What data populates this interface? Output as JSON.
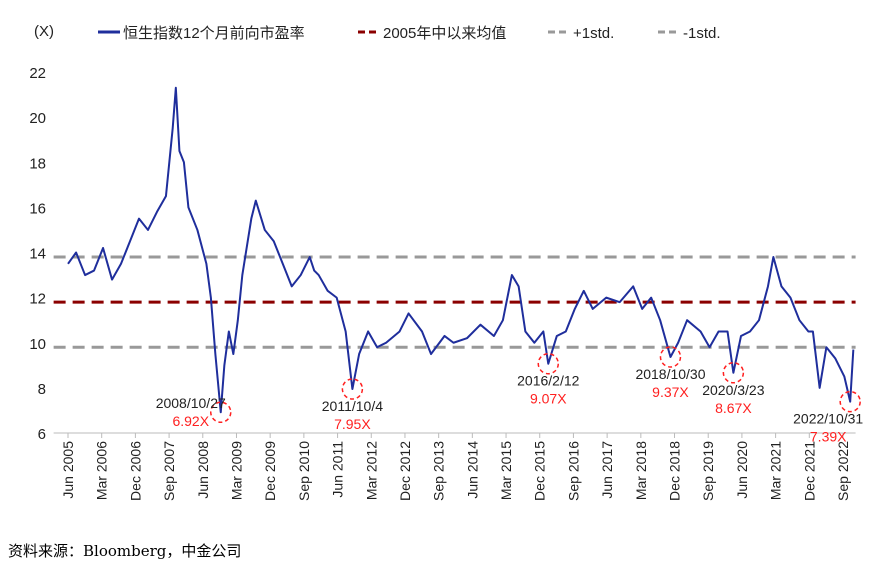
{
  "chart_data": {
    "type": "line",
    "unit_label": "(X)",
    "ylim": [
      6,
      22
    ],
    "yticks": [
      6,
      8,
      10,
      12,
      14,
      16,
      18,
      20,
      22
    ],
    "xlim": [
      2005.1,
      2022.95
    ],
    "xticks": [
      {
        "t": 2005.42,
        "label": "Jun 2005"
      },
      {
        "t": 2006.17,
        "label": "Mar 2006"
      },
      {
        "t": 2006.92,
        "label": "Dec 2006"
      },
      {
        "t": 2007.67,
        "label": "Sep 2007"
      },
      {
        "t": 2008.42,
        "label": "Jun 2008"
      },
      {
        "t": 2009.17,
        "label": "Mar 2009"
      },
      {
        "t": 2009.92,
        "label": "Dec 2009"
      },
      {
        "t": 2010.67,
        "label": "Sep 2010"
      },
      {
        "t": 2011.42,
        "label": "Jun 2011"
      },
      {
        "t": 2012.17,
        "label": "Mar 2012"
      },
      {
        "t": 2012.92,
        "label": "Dec 2012"
      },
      {
        "t": 2013.67,
        "label": "Sep 2013"
      },
      {
        "t": 2014.42,
        "label": "Jun 2014"
      },
      {
        "t": 2015.17,
        "label": "Mar 2015"
      },
      {
        "t": 2015.92,
        "label": "Dec 2015"
      },
      {
        "t": 2016.67,
        "label": "Sep 2016"
      },
      {
        "t": 2017.42,
        "label": "Jun 2017"
      },
      {
        "t": 2018.17,
        "label": "Mar 2018"
      },
      {
        "t": 2018.92,
        "label": "Dec 2018"
      },
      {
        "t": 2019.67,
        "label": "Sep 2019"
      },
      {
        "t": 2020.42,
        "label": "Jun 2020"
      },
      {
        "t": 2021.17,
        "label": "Mar 2021"
      },
      {
        "t": 2021.92,
        "label": "Dec 2021"
      },
      {
        "t": 2022.67,
        "label": "Sep 2022"
      }
    ],
    "series": [
      {
        "name": "恒生指数12个月前向市盈率",
        "color": "#1f2e9c",
        "style": "solid",
        "points": [
          [
            2005.42,
            13.5
          ],
          [
            2005.6,
            14.0
          ],
          [
            2005.8,
            13.0
          ],
          [
            2006.0,
            13.2
          ],
          [
            2006.2,
            14.2
          ],
          [
            2006.4,
            12.8
          ],
          [
            2006.6,
            13.5
          ],
          [
            2006.8,
            14.5
          ],
          [
            2007.0,
            15.5
          ],
          [
            2007.2,
            15.0
          ],
          [
            2007.4,
            15.8
          ],
          [
            2007.6,
            16.5
          ],
          [
            2007.75,
            19.5
          ],
          [
            2007.82,
            21.3
          ],
          [
            2007.9,
            18.5
          ],
          [
            2008.0,
            18.0
          ],
          [
            2008.1,
            16.0
          ],
          [
            2008.3,
            15.0
          ],
          [
            2008.5,
            13.5
          ],
          [
            2008.6,
            12.0
          ],
          [
            2008.7,
            9.5
          ],
          [
            2008.82,
            6.92
          ],
          [
            2008.9,
            9.0
          ],
          [
            2009.0,
            10.5
          ],
          [
            2009.1,
            9.5
          ],
          [
            2009.2,
            11.0
          ],
          [
            2009.3,
            13.0
          ],
          [
            2009.5,
            15.5
          ],
          [
            2009.6,
            16.3
          ],
          [
            2009.8,
            15.0
          ],
          [
            2010.0,
            14.5
          ],
          [
            2010.2,
            13.5
          ],
          [
            2010.4,
            12.5
          ],
          [
            2010.6,
            13.0
          ],
          [
            2010.8,
            13.8
          ],
          [
            2010.9,
            13.2
          ],
          [
            2011.0,
            13.0
          ],
          [
            2011.2,
            12.3
          ],
          [
            2011.4,
            12.0
          ],
          [
            2011.6,
            10.5
          ],
          [
            2011.75,
            7.95
          ],
          [
            2011.9,
            9.5
          ],
          [
            2012.1,
            10.5
          ],
          [
            2012.3,
            9.8
          ],
          [
            2012.5,
            10.0
          ],
          [
            2012.8,
            10.5
          ],
          [
            2013.0,
            11.3
          ],
          [
            2013.3,
            10.5
          ],
          [
            2013.5,
            9.5
          ],
          [
            2013.8,
            10.3
          ],
          [
            2014.0,
            10.0
          ],
          [
            2014.3,
            10.2
          ],
          [
            2014.6,
            10.8
          ],
          [
            2014.9,
            10.3
          ],
          [
            2015.1,
            11.0
          ],
          [
            2015.3,
            13.0
          ],
          [
            2015.45,
            12.5
          ],
          [
            2015.6,
            10.5
          ],
          [
            2015.8,
            10.0
          ],
          [
            2016.0,
            10.5
          ],
          [
            2016.11,
            9.07
          ],
          [
            2016.3,
            10.3
          ],
          [
            2016.5,
            10.5
          ],
          [
            2016.7,
            11.5
          ],
          [
            2016.9,
            12.3
          ],
          [
            2017.1,
            11.5
          ],
          [
            2017.4,
            12.0
          ],
          [
            2017.7,
            11.8
          ],
          [
            2018.0,
            12.5
          ],
          [
            2018.2,
            11.5
          ],
          [
            2018.4,
            12.0
          ],
          [
            2018.6,
            11.0
          ],
          [
            2018.83,
            9.37
          ],
          [
            2019.0,
            10.0
          ],
          [
            2019.2,
            11.0
          ],
          [
            2019.5,
            10.5
          ],
          [
            2019.7,
            9.8
          ],
          [
            2019.9,
            10.5
          ],
          [
            2020.1,
            10.5
          ],
          [
            2020.23,
            8.67
          ],
          [
            2020.4,
            10.3
          ],
          [
            2020.6,
            10.5
          ],
          [
            2020.8,
            11.0
          ],
          [
            2021.0,
            12.5
          ],
          [
            2021.12,
            13.8
          ],
          [
            2021.3,
            12.5
          ],
          [
            2021.5,
            12.0
          ],
          [
            2021.7,
            11.0
          ],
          [
            2021.9,
            10.5
          ],
          [
            2022.0,
            10.5
          ],
          [
            2022.15,
            8.0
          ],
          [
            2022.3,
            9.8
          ],
          [
            2022.5,
            9.3
          ],
          [
            2022.7,
            8.5
          ],
          [
            2022.83,
            7.39
          ],
          [
            2022.9,
            9.7
          ]
        ]
      },
      {
        "name": "2005年中以来均值",
        "color": "#8b0000",
        "style": "dashed",
        "value": 11.8
      },
      {
        "name": "+1std.",
        "color": "#999999",
        "style": "dashed",
        "value": 13.8
      },
      {
        "name": "-1std.",
        "color": "#999999",
        "style": "dashed",
        "value": 9.8
      }
    ],
    "annotations": [
      {
        "t": 2008.82,
        "v": 6.92,
        "date": "2008/10/27",
        "value": "6.92X",
        "pos": "left"
      },
      {
        "t": 2011.75,
        "v": 7.95,
        "date": "2011/10/4",
        "value": "7.95X",
        "pos": "below"
      },
      {
        "t": 2016.11,
        "v": 9.07,
        "date": "2016/2/12",
        "value": "9.07X",
        "pos": "below"
      },
      {
        "t": 2018.83,
        "v": 9.37,
        "date": "2018/10/30",
        "value": "9.37X",
        "pos": "below"
      },
      {
        "t": 2020.23,
        "v": 8.67,
        "date": "2020/3/23",
        "value": "8.67X",
        "pos": "below"
      },
      {
        "t": 2022.83,
        "v": 7.39,
        "date": "2022/10/31",
        "value": "7.39X",
        "pos": "below"
      }
    ],
    "annotation_color": "#ff2020",
    "legend_position": "top"
  },
  "source": "资料来源：Bloomberg，中金公司"
}
